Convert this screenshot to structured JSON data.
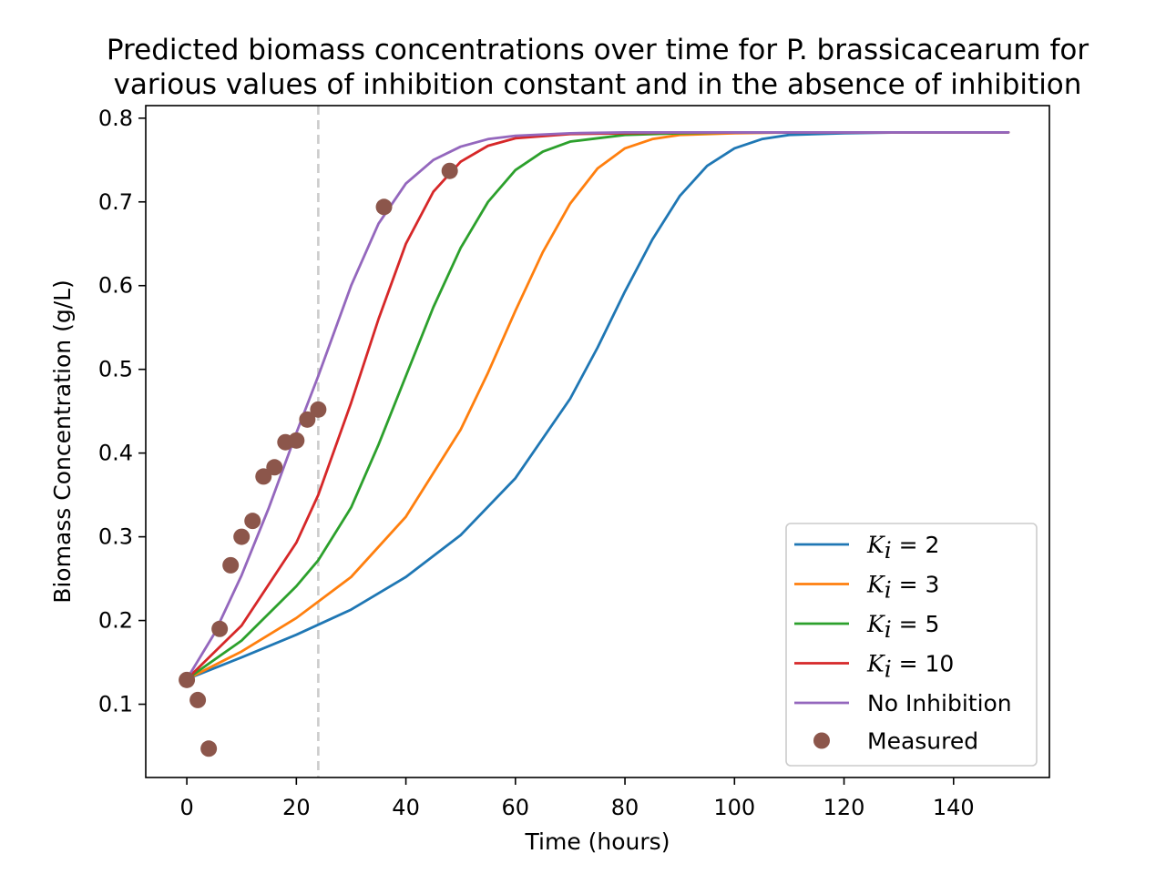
{
  "chart_data": {
    "type": "line",
    "title": [
      "Predicted biomass concentrations over time for P. brassicacearum for",
      "various values of inhibition constant and in the absence of inhibition"
    ],
    "xlabel": "Time (hours)",
    "ylabel": "Biomass Concentration (g/L)",
    "xlim": [
      -7.5,
      157.5
    ],
    "ylim": [
      0.0125,
      0.815
    ],
    "x_ticks": [
      0,
      20,
      40,
      60,
      80,
      100,
      120,
      140
    ],
    "x_tick_labels": [
      "0",
      "20",
      "40",
      "60",
      "80",
      "100",
      "120",
      "140"
    ],
    "y_ticks": [
      0.1,
      0.2,
      0.3,
      0.4,
      0.5,
      0.6,
      0.7,
      0.8
    ],
    "y_tick_labels": [
      "0.1",
      "0.2",
      "0.3",
      "0.4",
      "0.5",
      "0.6",
      "0.7",
      "0.8"
    ],
    "grid": false,
    "legend_position": "lower-right",
    "reference_lines": [
      {
        "orientation": "vertical",
        "x": 24,
        "style": "dashed",
        "color": "#cccccc"
      }
    ],
    "series": [
      {
        "name": "K_i = 2",
        "legend_symbol": "K",
        "legend_subscript": "i",
        "legend_value": " = 2",
        "color": "#1f77b4",
        "x": [
          0,
          10,
          20,
          30,
          40,
          50,
          60,
          70,
          75,
          80,
          85,
          90,
          95,
          100,
          105,
          110,
          120,
          130,
          140,
          150
        ],
        "y": [
          0.13,
          0.156,
          0.183,
          0.213,
          0.252,
          0.302,
          0.37,
          0.465,
          0.526,
          0.593,
          0.655,
          0.707,
          0.743,
          0.764,
          0.775,
          0.78,
          0.782,
          0.783,
          0.783,
          0.783
        ]
      },
      {
        "name": "K_i = 3",
        "legend_symbol": "K",
        "legend_subscript": "i",
        "legend_value": " = 3",
        "color": "#ff7f0e",
        "x": [
          0,
          10,
          20,
          30,
          40,
          50,
          55,
          60,
          65,
          70,
          75,
          80,
          85,
          90,
          100,
          110,
          120,
          150
        ],
        "y": [
          0.13,
          0.163,
          0.203,
          0.252,
          0.324,
          0.428,
          0.496,
          0.57,
          0.64,
          0.698,
          0.74,
          0.764,
          0.775,
          0.78,
          0.782,
          0.783,
          0.783,
          0.783
        ]
      },
      {
        "name": "K_i = 5",
        "legend_symbol": "K",
        "legend_subscript": "i",
        "legend_value": " = 5",
        "color": "#2ca02c",
        "x": [
          0,
          10,
          20,
          24,
          30,
          35,
          40,
          45,
          50,
          55,
          60,
          65,
          70,
          80,
          90,
          100,
          150
        ],
        "y": [
          0.13,
          0.176,
          0.241,
          0.272,
          0.335,
          0.41,
          0.492,
          0.574,
          0.645,
          0.7,
          0.738,
          0.76,
          0.772,
          0.78,
          0.782,
          0.783,
          0.783
        ]
      },
      {
        "name": "K_i = 10",
        "legend_symbol": "K",
        "legend_subscript": "i",
        "legend_value": " = 10",
        "color": "#d62728",
        "x": [
          0,
          10,
          20,
          24,
          30,
          35,
          40,
          45,
          50,
          55,
          60,
          70,
          80,
          90,
          150
        ],
        "y": [
          0.13,
          0.194,
          0.293,
          0.35,
          0.46,
          0.56,
          0.65,
          0.712,
          0.748,
          0.767,
          0.776,
          0.781,
          0.782,
          0.783,
          0.783
        ]
      },
      {
        "name": "No Inhibition",
        "color": "#9467bd",
        "x": [
          0,
          5,
          10,
          15,
          20,
          24,
          30,
          35,
          40,
          45,
          50,
          55,
          60,
          70,
          80,
          90,
          150
        ],
        "y": [
          0.13,
          0.184,
          0.254,
          0.335,
          0.424,
          0.492,
          0.6,
          0.674,
          0.722,
          0.75,
          0.766,
          0.775,
          0.779,
          0.782,
          0.783,
          0.783,
          0.783
        ]
      }
    ],
    "scatter": {
      "name": "Measured",
      "color": "#8c564b",
      "x": [
        0,
        2,
        4,
        6,
        8,
        10,
        12,
        14,
        16,
        18,
        20,
        22,
        24,
        36,
        48
      ],
      "y": [
        0.129,
        0.105,
        0.047,
        0.19,
        0.266,
        0.3,
        0.319,
        0.372,
        0.383,
        0.413,
        0.415,
        0.44,
        0.452,
        0.694,
        0.737
      ]
    }
  }
}
